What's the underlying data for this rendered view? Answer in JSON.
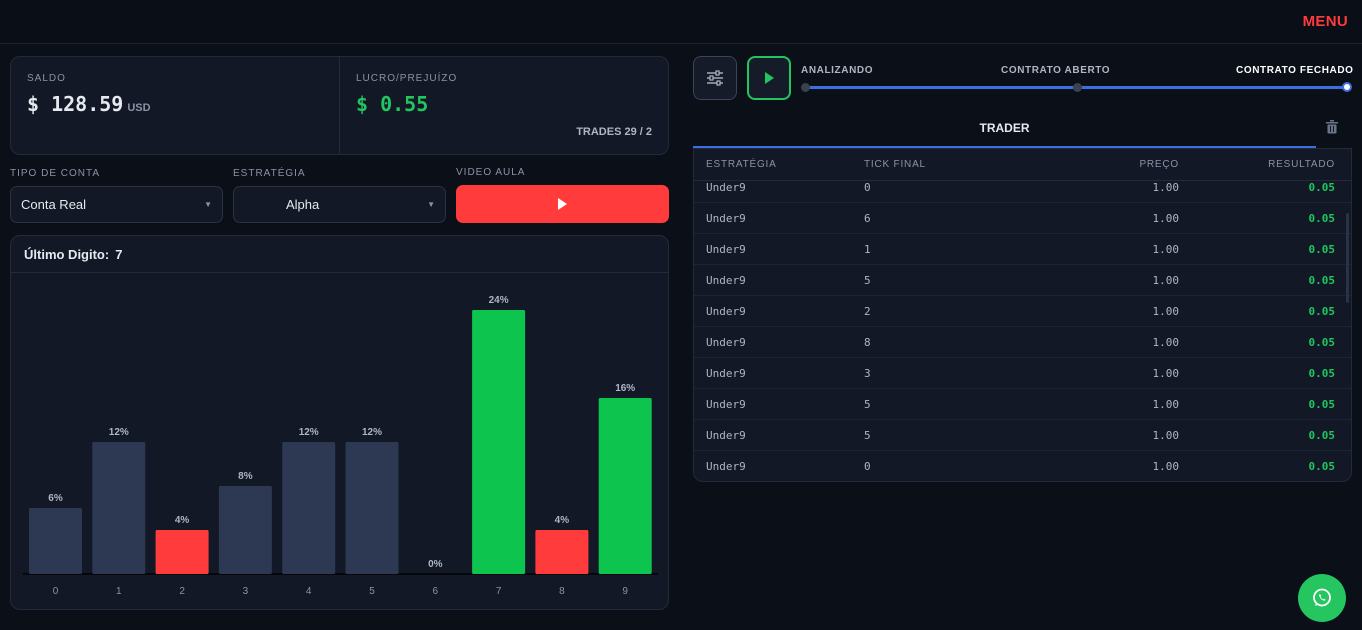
{
  "header": {
    "menu_label": "MENU"
  },
  "balance": {
    "saldo_label": "SALDO",
    "saldo_value": "$ 128.59",
    "saldo_currency": "USD",
    "lucro_label": "LUCRO/PREJUÍZO",
    "lucro_value": "$ 0.55",
    "trades_text": "TRADES 29 / 2"
  },
  "controls": {
    "account_label": "TIPO DE CONTA",
    "account_value": "Conta Real",
    "strategy_label": "ESTRATÉGIA",
    "strategy_value": "Alpha",
    "video_label": "VIDEO AULA"
  },
  "last_digit": {
    "label": "Último Digito:",
    "value": "7"
  },
  "chart_data": {
    "type": "bar",
    "categories": [
      "0",
      "1",
      "2",
      "3",
      "4",
      "5",
      "6",
      "7",
      "8",
      "9"
    ],
    "values": [
      6,
      12,
      4,
      8,
      12,
      12,
      0,
      24,
      4,
      16
    ],
    "value_labels": [
      "6%",
      "12%",
      "4%",
      "8%",
      "12%",
      "12%",
      "0%",
      "24%",
      "4%",
      "16%"
    ],
    "bar_colors": [
      "#2d3852",
      "#2d3852",
      "#ff3b3b",
      "#2d3852",
      "#2d3852",
      "#2d3852",
      "#2d3852",
      "#0dc54e",
      "#ff3b3b",
      "#0dc54e"
    ],
    "ylim": [
      0,
      24
    ]
  },
  "progress": {
    "steps": [
      "ANALIZANDO",
      "CONTRATO ABERTO",
      "CONTRATO FECHADO"
    ],
    "active_step": 2
  },
  "trader": {
    "tab_label": "TRADER",
    "columns": [
      "ESTRATÉGIA",
      "TICK FINAL",
      "PREÇO",
      "RESULTADO"
    ],
    "rows": [
      [
        "Under9",
        "0",
        "1.00",
        "0.05"
      ],
      [
        "Under9",
        "6",
        "1.00",
        "0.05"
      ],
      [
        "Under9",
        "1",
        "1.00",
        "0.05"
      ],
      [
        "Under9",
        "5",
        "1.00",
        "0.05"
      ],
      [
        "Under9",
        "2",
        "1.00",
        "0.05"
      ],
      [
        "Under9",
        "8",
        "1.00",
        "0.05"
      ],
      [
        "Under9",
        "3",
        "1.00",
        "0.05"
      ],
      [
        "Under9",
        "5",
        "1.00",
        "0.05"
      ],
      [
        "Under9",
        "5",
        "1.00",
        "0.05"
      ],
      [
        "Under9",
        "0",
        "1.00",
        "0.05"
      ]
    ]
  },
  "colors": {
    "accent": "#3b6fe0",
    "danger": "#ff3b3b",
    "success": "#22c55e"
  },
  "icons": {
    "settings": "sliders-icon",
    "play": "play-icon",
    "trash": "trash-icon",
    "whatsapp": "whatsapp-icon"
  }
}
